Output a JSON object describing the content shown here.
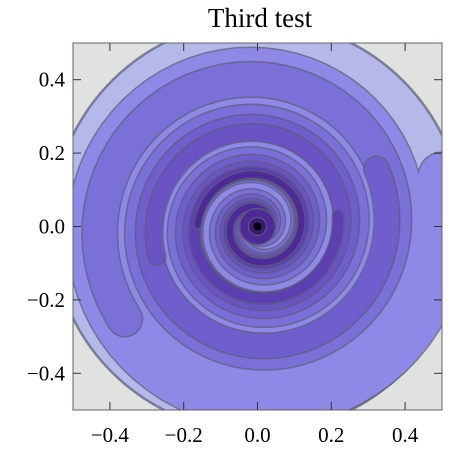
{
  "chart_data": {
    "type": "contour",
    "title": "Third test",
    "xlabel": "",
    "ylabel": "",
    "xlim": [
      -0.5,
      0.5
    ],
    "ylim": [
      -0.5,
      0.5
    ],
    "x_ticks": [
      -0.4,
      -0.2,
      0.0,
      0.2,
      0.4
    ],
    "y_ticks": [
      -0.4,
      -0.2,
      0.0,
      0.2,
      0.4
    ],
    "x_tick_labels": [
      "−0.4",
      "−0.2",
      "0.0",
      "0.2",
      "0.4"
    ],
    "y_tick_labels": [
      "−0.4",
      "−0.2",
      "0.0",
      "0.2",
      "0.4"
    ],
    "center": [
      0.0,
      0.0
    ],
    "center_marker": "filled-dot",
    "outer_corner_color": "#dfe2df",
    "contour_line_color": "#5a5a78",
    "band_colors": [
      "#b4b9ea",
      "#8e88e6",
      "#7b6fd8",
      "#6f5ecc",
      "#6a53c2",
      "#5c3fb0",
      "#4d2a98",
      "#3a1a72"
    ],
    "grid": false,
    "legend": "none"
  }
}
